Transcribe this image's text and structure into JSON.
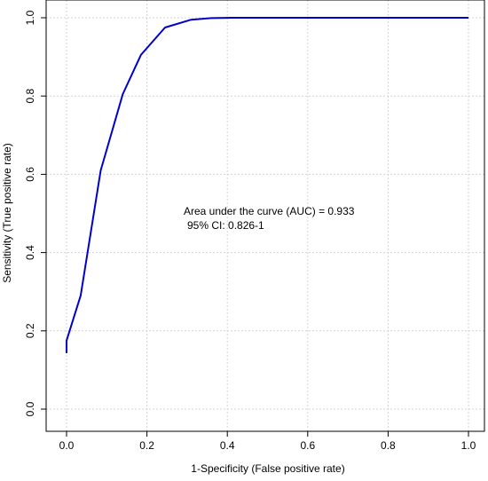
{
  "chart_data": {
    "type": "line",
    "title": "",
    "xlabel": "1-Specificity (False positive rate)",
    "ylabel": "Sensitivity (True positive rate)",
    "xlim": [
      0,
      1
    ],
    "ylim": [
      0,
      1
    ],
    "x_ticks": [
      "0.0",
      "0.2",
      "0.4",
      "0.6",
      "0.8",
      "1.0"
    ],
    "y_ticks": [
      "0.0",
      "0.2",
      "0.4",
      "0.6",
      "0.8",
      "1.0"
    ],
    "grid": true,
    "series": [
      {
        "color": "#0000cc",
        "x": [
          0.0,
          0.0,
          0.035,
          0.085,
          0.14,
          0.185,
          0.245,
          0.31,
          0.36,
          0.41,
          1.0
        ],
        "y": [
          0.143,
          0.175,
          0.29,
          0.61,
          0.805,
          0.905,
          0.975,
          0.995,
          0.999,
          1.0,
          1.0
        ]
      }
    ],
    "annotations": [
      "Area under the curve (AUC) = 0.933",
      "95% CI: 0.826-1"
    ]
  }
}
